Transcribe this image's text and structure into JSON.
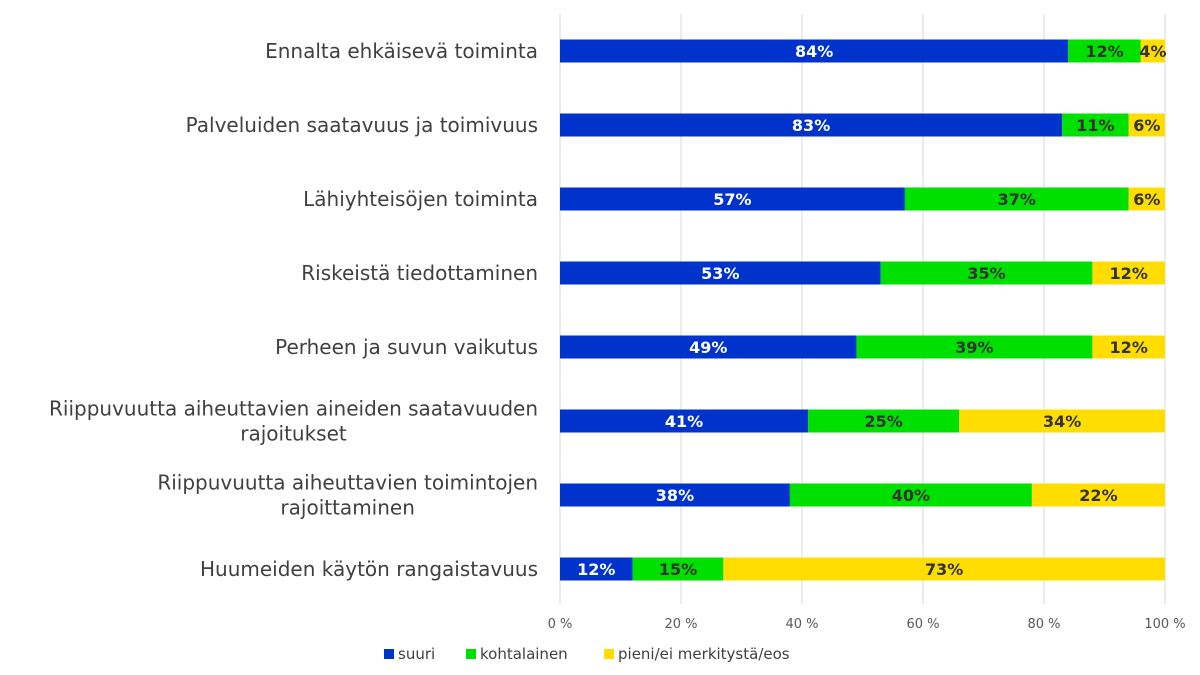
{
  "chart_data": {
    "type": "bar",
    "orientation": "horizontal",
    "stacked": true,
    "title": "",
    "xlabel": "",
    "ylabel": "",
    "xlim": [
      0,
      100
    ],
    "grid": true,
    "legend_position": "bottom",
    "categories": [
      [
        "Ennalta ehkäisevä toiminta"
      ],
      [
        "Palveluiden saatavuus ja toimivuus"
      ],
      [
        "Lähiyhteisöjen toiminta"
      ],
      [
        "Riskeistä tiedottaminen"
      ],
      [
        "Perheen ja suvun vaikutus"
      ],
      [
        "Riippuvuutta aiheuttavien aineiden saatavuuden",
        "rajoitukset"
      ],
      [
        "Riippuvuutta aiheuttavien toimintojen",
        "rajoittaminen"
      ],
      [
        "Huumeiden käytön rangaistavuus"
      ]
    ],
    "x_ticks": [
      0,
      20,
      40,
      60,
      80,
      100
    ],
    "x_tick_labels": [
      "0 %",
      "20 %",
      "40 %",
      "60 %",
      "80 %",
      "100 %"
    ],
    "series": [
      {
        "name": "suuri",
        "color": "#0033cc",
        "label_color": "#ffffff",
        "values": [
          84,
          83,
          57,
          53,
          49,
          41,
          38,
          12
        ],
        "labels": [
          "84%",
          "83%",
          "57%",
          "53%",
          "49%",
          "41%",
          "38%",
          "12%"
        ]
      },
      {
        "name": "kohtalainen",
        "color": "#00e000",
        "label_color": "#333333",
        "values": [
          12,
          11,
          37,
          35,
          39,
          25,
          40,
          15
        ],
        "labels": [
          "12%",
          "11%",
          "37%",
          "35%",
          "39%",
          "25%",
          "40%",
          "15%"
        ]
      },
      {
        "name": "pieni/ei merkitystä/eos",
        "color": "#ffdd00",
        "label_color": "#333333",
        "values": [
          4,
          6,
          6,
          12,
          12,
          34,
          22,
          73
        ],
        "labels": [
          "4%",
          "6%",
          "6%",
          "12%",
          "12%",
          "34%",
          "22%",
          "73%"
        ]
      }
    ]
  }
}
